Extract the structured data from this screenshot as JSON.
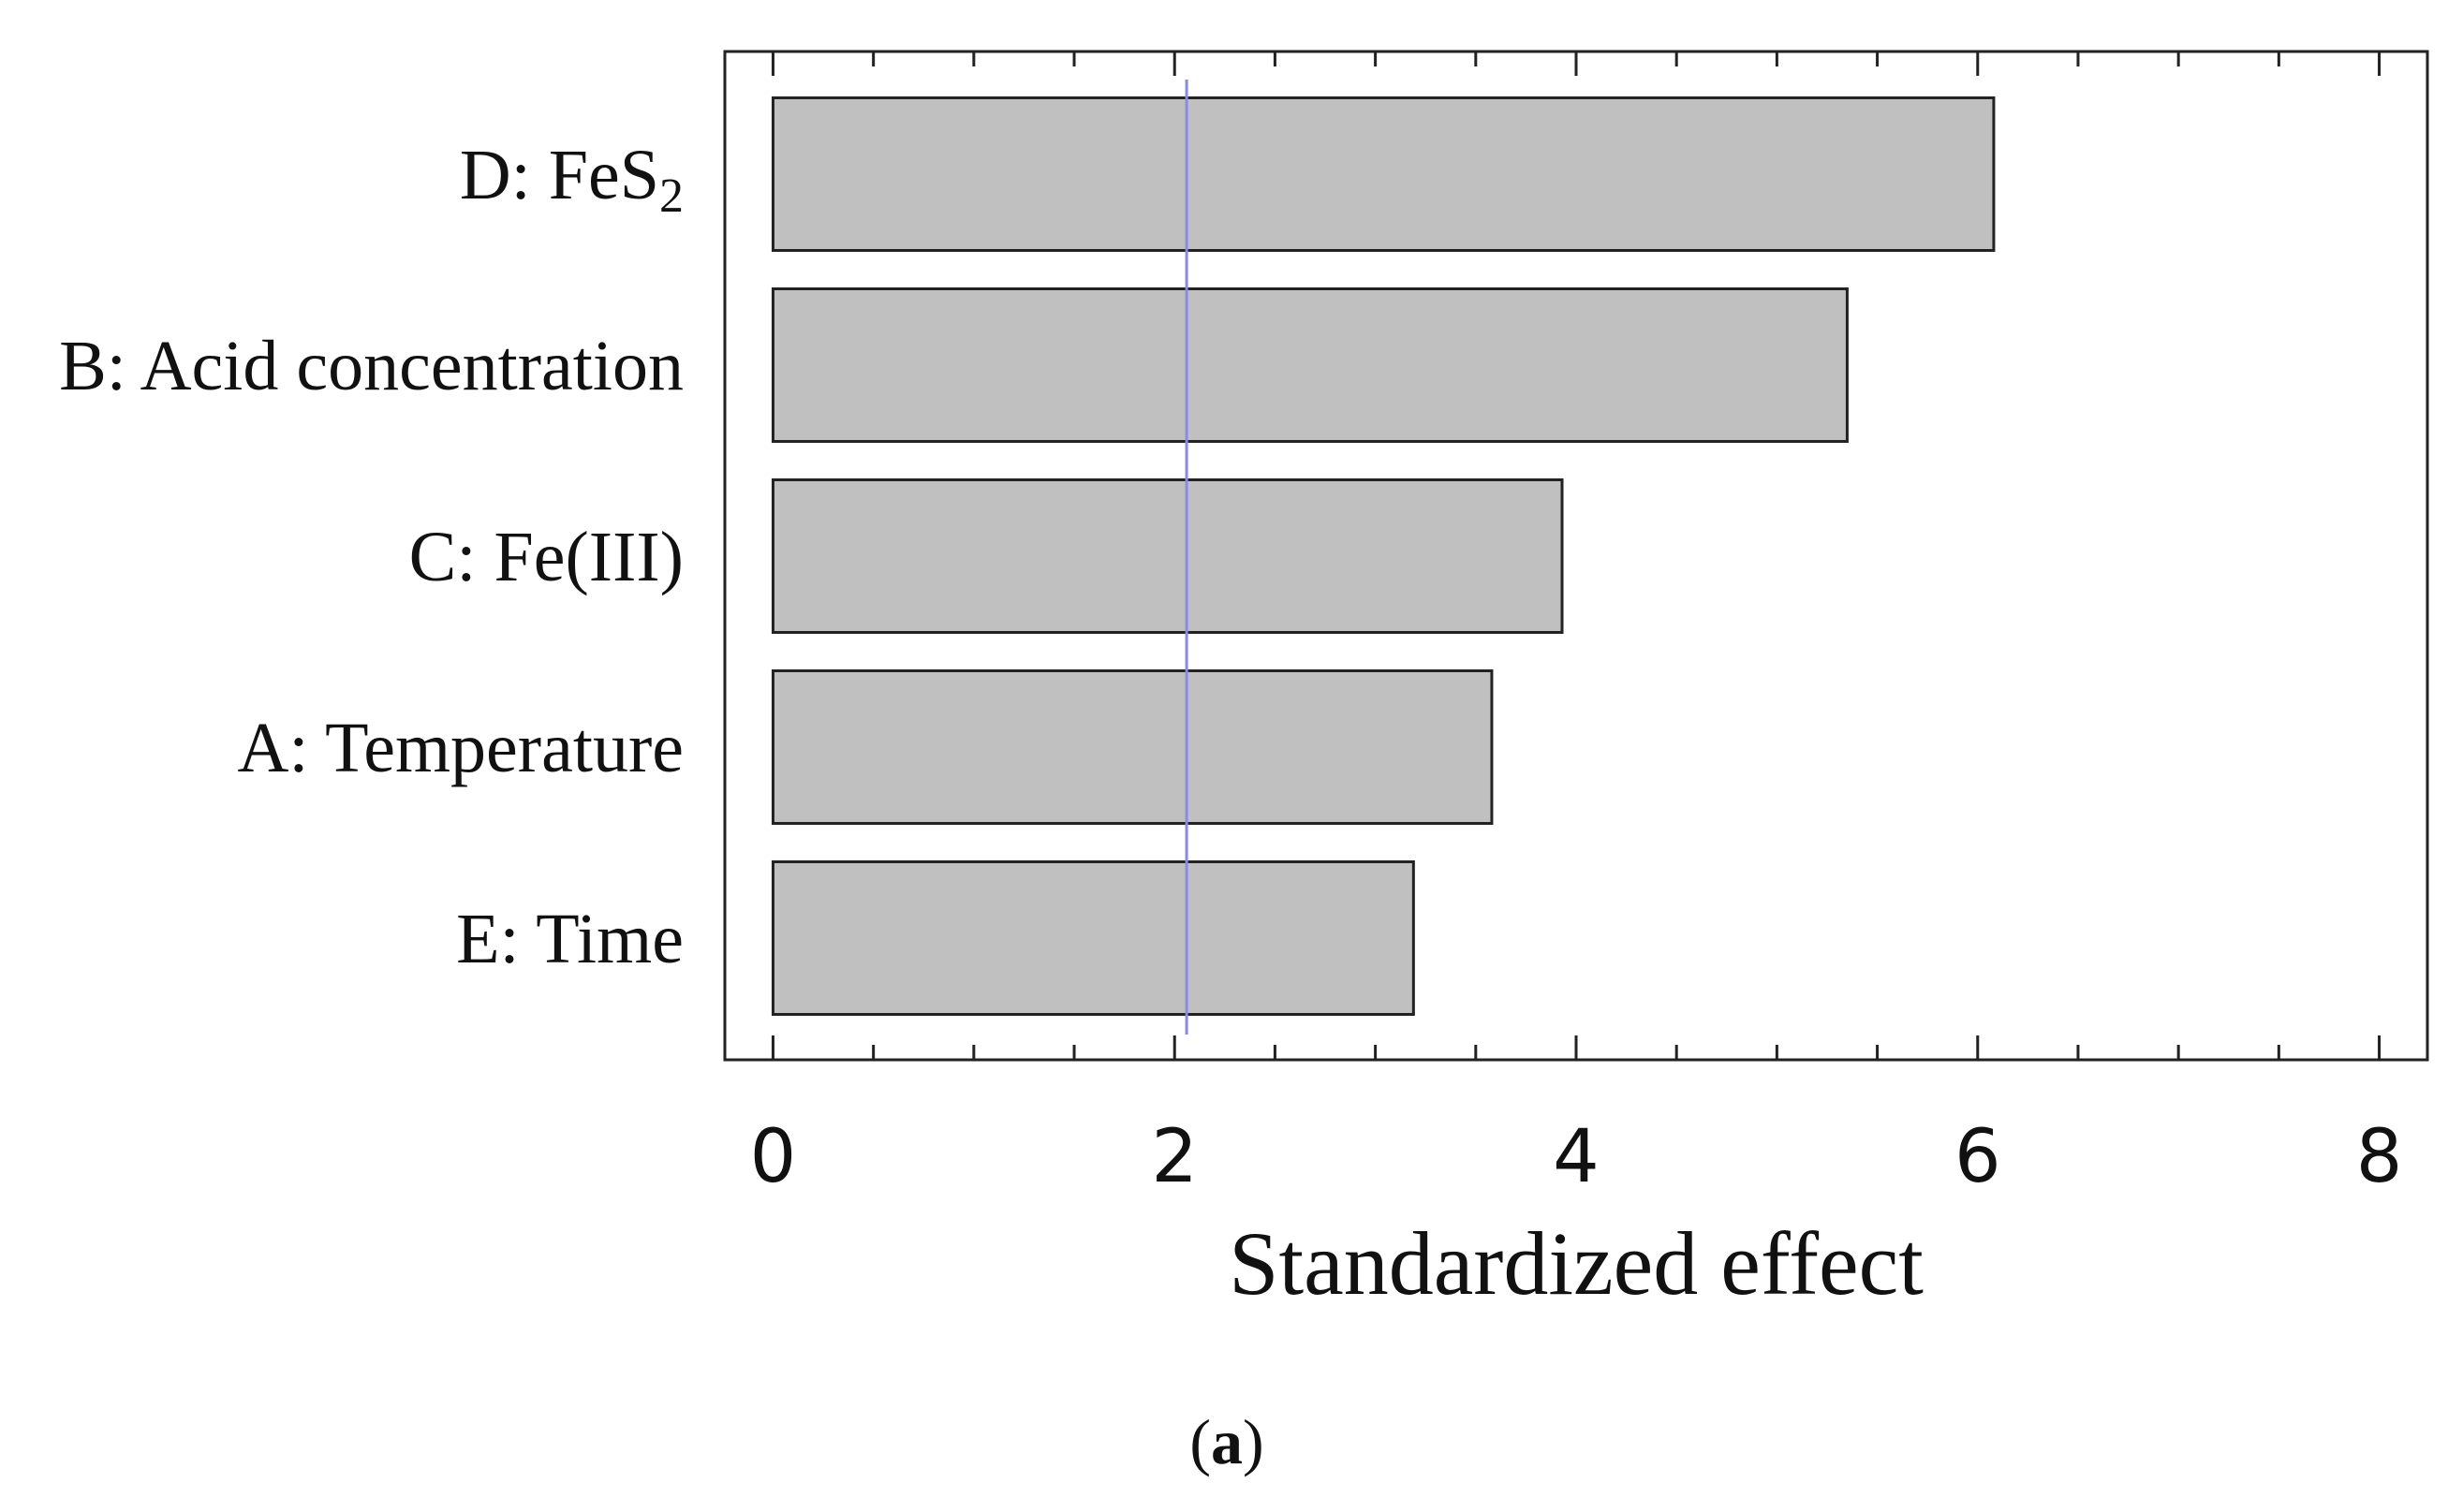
{
  "chart_data": {
    "type": "bar",
    "orientation": "horizontal",
    "categories": [
      "D: FeS",
      "B: Acid concentration",
      "C: Fe(III)",
      "A: Temperature",
      "E: Time"
    ],
    "category_subscripts": [
      "2",
      "",
      "",
      "",
      ""
    ],
    "values": [
      6.08,
      5.35,
      3.93,
      3.58,
      3.19
    ],
    "xlabel": "Standardized effect",
    "ylabel": "",
    "xlim": [
      -0.24,
      8.24
    ],
    "xticks": [
      0,
      2,
      4,
      6,
      8
    ],
    "reference_line": 2.06,
    "panel_label": {
      "open": "(",
      "letter": "a",
      "close": ")"
    },
    "colors": {
      "bar_fill": "#c0c0c0",
      "bar_edge": "#222222",
      "reference": "#8a8ae0",
      "frame": "#222222"
    }
  }
}
